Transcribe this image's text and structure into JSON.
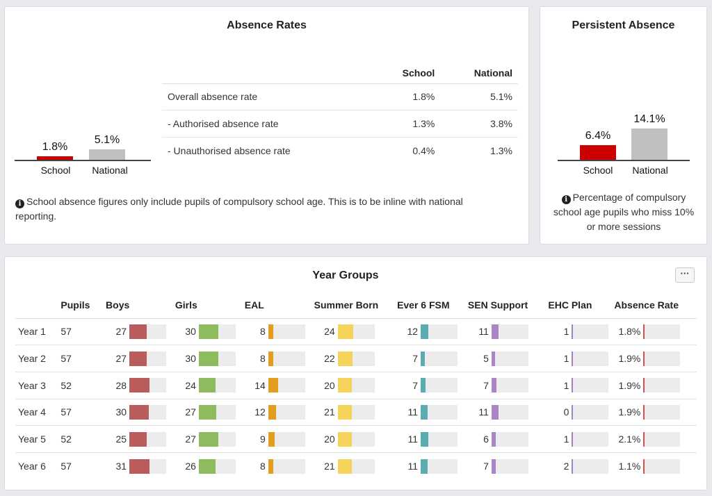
{
  "colors": {
    "school": "#cc0000",
    "national": "#c0c0c0",
    "boys": "#b85c5c",
    "girls": "#8dbb5e",
    "eal": "#e39d1c",
    "summer_born": "#f5d35a",
    "fsm": "#5aabb2",
    "sen": "#ab86c6",
    "ehc": "#a184c1",
    "absence": "#d45050"
  },
  "absence_rates": {
    "title": "Absence Rates",
    "chart": {
      "school_value": 1.8,
      "national_value": 5.1,
      "school_label": "1.8%",
      "national_label": "5.1%",
      "school_cat": "School",
      "national_cat": "National"
    },
    "table": {
      "col_school": "School",
      "col_national": "National",
      "rows": [
        {
          "label": "Overall absence rate",
          "school": "1.8%",
          "national": "5.1%"
        },
        {
          "label": "- Authorised absence rate",
          "school": "1.3%",
          "national": "3.8%"
        },
        {
          "label": "- Unauthorised absence rate",
          "school": "0.4%",
          "national": "1.3%"
        }
      ]
    },
    "note": "School absence figures only include pupils of compulsory school age. This is to be inline with national reporting."
  },
  "persistent_absence": {
    "title": "Persistent Absence",
    "chart": {
      "school_value": 6.4,
      "national_value": 14.1,
      "school_label": "6.4%",
      "national_label": "14.1%",
      "school_cat": "School",
      "national_cat": "National"
    },
    "note": "Percentage of compulsory school age pupils who miss 10% or more sessions"
  },
  "year_groups": {
    "title": "Year Groups",
    "more_label": "···",
    "headers": {
      "year": "",
      "pupils": "Pupils",
      "boys": "Boys",
      "girls": "Girls",
      "eal": "EAL",
      "summer_born": "Summer Born",
      "fsm": "Ever 6 FSM",
      "sen": "SEN Support",
      "ehc": "EHC Plan",
      "absence": "Absence Rate"
    },
    "rows": [
      {
        "year": "Year 1",
        "pupils": "57",
        "boys": "27",
        "girls": "30",
        "eal": "8",
        "summer_born": "24",
        "fsm": "12",
        "sen": "11",
        "ehc": "1",
        "absence": "1.8%",
        "bars": {
          "boys": 0.47,
          "girls": 0.53,
          "eal": 0.14,
          "summer_born": 0.42,
          "fsm": 0.21,
          "sen": 0.19,
          "ehc": 0.02,
          "absence": 0.036
        }
      },
      {
        "year": "Year 2",
        "pupils": "57",
        "boys": "27",
        "girls": "30",
        "eal": "8",
        "summer_born": "22",
        "fsm": "7",
        "sen": "5",
        "ehc": "1",
        "absence": "1.9%",
        "bars": {
          "boys": 0.47,
          "girls": 0.53,
          "eal": 0.14,
          "summer_born": 0.39,
          "fsm": 0.12,
          "sen": 0.09,
          "ehc": 0.02,
          "absence": 0.038
        }
      },
      {
        "year": "Year 3",
        "pupils": "52",
        "boys": "28",
        "girls": "24",
        "eal": "14",
        "summer_born": "20",
        "fsm": "7",
        "sen": "7",
        "ehc": "1",
        "absence": "1.9%",
        "bars": {
          "boys": 0.54,
          "girls": 0.46,
          "eal": 0.27,
          "summer_born": 0.38,
          "fsm": 0.13,
          "sen": 0.13,
          "ehc": 0.02,
          "absence": 0.038
        }
      },
      {
        "year": "Year 4",
        "pupils": "57",
        "boys": "30",
        "girls": "27",
        "eal": "12",
        "summer_born": "21",
        "fsm": "11",
        "sen": "11",
        "ehc": "0",
        "absence": "1.9%",
        "bars": {
          "boys": 0.53,
          "girls": 0.47,
          "eal": 0.21,
          "summer_born": 0.37,
          "fsm": 0.19,
          "sen": 0.19,
          "ehc": 0.0,
          "absence": 0.038
        }
      },
      {
        "year": "Year 5",
        "pupils": "52",
        "boys": "25",
        "girls": "27",
        "eal": "9",
        "summer_born": "20",
        "fsm": "11",
        "sen": "6",
        "ehc": "1",
        "absence": "2.1%",
        "bars": {
          "boys": 0.48,
          "girls": 0.52,
          "eal": 0.17,
          "summer_born": 0.38,
          "fsm": 0.21,
          "sen": 0.12,
          "ehc": 0.02,
          "absence": 0.042
        }
      },
      {
        "year": "Year 6",
        "pupils": "57",
        "boys": "31",
        "girls": "26",
        "eal": "8",
        "summer_born": "21",
        "fsm": "11",
        "sen": "7",
        "ehc": "2",
        "absence": "1.1%",
        "bars": {
          "boys": 0.54,
          "girls": 0.46,
          "eal": 0.14,
          "summer_born": 0.37,
          "fsm": 0.19,
          "sen": 0.12,
          "ehc": 0.04,
          "absence": 0.022
        }
      }
    ]
  }
}
